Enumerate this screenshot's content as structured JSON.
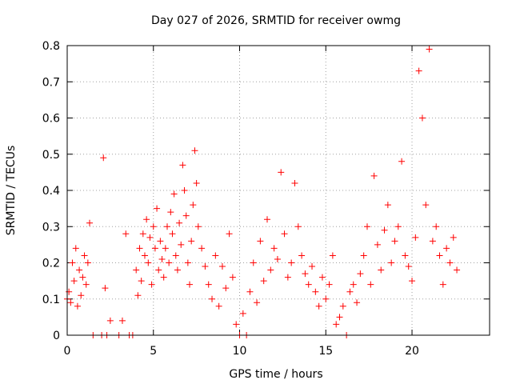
{
  "chart_data": {
    "type": "scatter",
    "title": "Day 027 of 2026, SRMTID for receiver owmg",
    "xlabel": "GPS time / hours",
    "ylabel": "SRMTID / TECUs",
    "xlim": [
      0,
      24.5
    ],
    "ylim": [
      0,
      0.8
    ],
    "xticks": [
      0,
      5,
      10,
      15,
      20
    ],
    "xtick_labels": [
      "0",
      "5",
      "10",
      "15",
      "20"
    ],
    "yticks": [
      0,
      0.1,
      0.2,
      0.3,
      0.4,
      0.5,
      0.6,
      0.7,
      0.8
    ],
    "ytick_labels": [
      "0",
      "0.1",
      "0.2",
      "0.3",
      "0.4",
      "0.5",
      "0.6",
      "0.7",
      "0.8"
    ],
    "grid": true,
    "marker": "+",
    "color": "#ff0000",
    "series": [
      {
        "name": "SRMTID",
        "x": [
          0.0,
          0.1,
          0.2,
          0.3,
          0.4,
          0.5,
          0.6,
          0.7,
          0.8,
          0.9,
          1.0,
          1.1,
          1.2,
          1.3,
          1.5,
          2.0,
          2.1,
          2.2,
          2.3,
          2.5,
          3.0,
          3.2,
          3.4,
          3.6,
          3.8,
          4.0,
          4.1,
          4.2,
          4.3,
          4.4,
          4.5,
          4.6,
          4.7,
          4.8,
          4.9,
          5.0,
          5.1,
          5.2,
          5.3,
          5.4,
          5.5,
          5.6,
          5.7,
          5.8,
          5.9,
          6.0,
          6.1,
          6.2,
          6.3,
          6.4,
          6.5,
          6.6,
          6.7,
          6.8,
          6.9,
          7.0,
          7.1,
          7.2,
          7.3,
          7.4,
          7.5,
          7.6,
          7.8,
          8.0,
          8.2,
          8.4,
          8.6,
          8.8,
          9.0,
          9.2,
          9.4,
          9.6,
          9.8,
          10.0,
          10.2,
          10.4,
          10.6,
          10.8,
          11.0,
          11.2,
          11.4,
          11.6,
          11.8,
          12.0,
          12.2,
          12.4,
          12.6,
          12.8,
          13.0,
          13.2,
          13.4,
          13.6,
          13.8,
          14.0,
          14.2,
          14.4,
          14.6,
          14.8,
          15.0,
          15.2,
          15.4,
          15.6,
          15.8,
          16.0,
          16.2,
          16.4,
          16.6,
          16.8,
          17.0,
          17.2,
          17.4,
          17.6,
          17.8,
          18.0,
          18.2,
          18.4,
          18.6,
          18.8,
          19.0,
          19.2,
          19.4,
          19.6,
          19.8,
          20.0,
          20.2,
          20.4,
          20.6,
          20.8,
          21.0,
          21.2,
          21.4,
          21.6,
          21.8,
          22.0,
          22.2,
          22.4,
          22.6
        ],
        "y": [
          0.1,
          0.12,
          0.09,
          0.2,
          0.15,
          0.24,
          0.08,
          0.18,
          0.11,
          0.16,
          0.22,
          0.14,
          0.2,
          0.31,
          0.0,
          0.0,
          0.49,
          0.13,
          0.0,
          0.04,
          0.0,
          0.04,
          0.28,
          0.0,
          0.0,
          0.18,
          0.11,
          0.24,
          0.15,
          0.28,
          0.22,
          0.32,
          0.2,
          0.27,
          0.14,
          0.3,
          0.24,
          0.35,
          0.18,
          0.26,
          0.21,
          0.16,
          0.24,
          0.3,
          0.2,
          0.34,
          0.28,
          0.39,
          0.22,
          0.18,
          0.31,
          0.25,
          0.47,
          0.4,
          0.33,
          0.2,
          0.14,
          0.26,
          0.36,
          0.51,
          0.42,
          0.3,
          0.24,
          0.19,
          0.14,
          0.1,
          0.22,
          0.08,
          0.19,
          0.13,
          0.28,
          0.16,
          0.03,
          0.0,
          0.06,
          0.0,
          0.12,
          0.2,
          0.09,
          0.26,
          0.15,
          0.32,
          0.18,
          0.24,
          0.21,
          0.45,
          0.28,
          0.16,
          0.2,
          0.42,
          0.3,
          0.22,
          0.17,
          0.14,
          0.19,
          0.12,
          0.08,
          0.16,
          0.1,
          0.14,
          0.22,
          0.03,
          0.05,
          0.08,
          0.0,
          0.12,
          0.14,
          0.09,
          0.17,
          0.22,
          0.3,
          0.14,
          0.44,
          0.25,
          0.18,
          0.29,
          0.36,
          0.2,
          0.26,
          0.3,
          0.48,
          0.22,
          0.19,
          0.15,
          0.27,
          0.73,
          0.6,
          0.36,
          0.79,
          0.26,
          0.3,
          0.22,
          0.14,
          0.24,
          0.2,
          0.27,
          0.18
        ]
      }
    ]
  }
}
